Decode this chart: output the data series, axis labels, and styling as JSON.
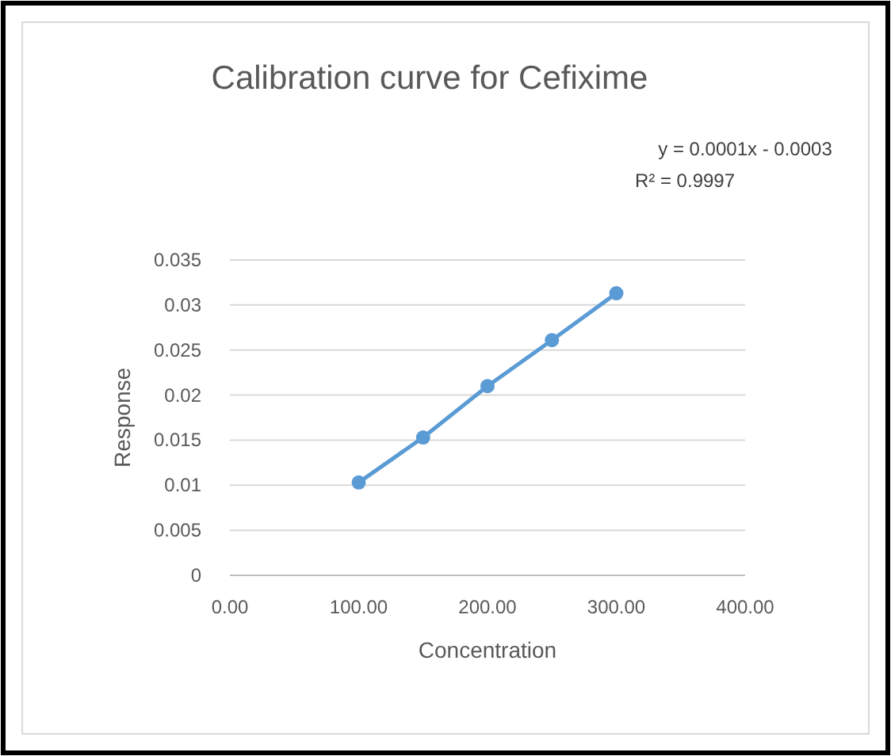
{
  "chart_data": {
    "type": "line",
    "title": "Calibration curve for Cefixime",
    "xlabel": "Concentration",
    "ylabel": "Response",
    "x": [
      100,
      150,
      200,
      250,
      300
    ],
    "series": [
      {
        "color": "#5b9bd5",
        "values": [
          0.0103,
          0.0153,
          0.021,
          0.0261,
          0.0313
        ]
      }
    ],
    "xlim": [
      0,
      400
    ],
    "xticks": [
      {
        "value": 0,
        "label": "0.00"
      },
      {
        "value": 100,
        "label": "100.00"
      },
      {
        "value": 200,
        "label": "200.00"
      },
      {
        "value": 300,
        "label": "300.00"
      },
      {
        "value": 400,
        "label": "400.00"
      }
    ],
    "ylim": [
      0,
      0.035
    ],
    "yticks": [
      {
        "value": 0,
        "label": "0"
      },
      0.005,
      0.01,
      0.015,
      0.02,
      0.025,
      0.03,
      0.035
    ],
    "grid": "y",
    "marker": "circle",
    "line_style": "solid",
    "annotations": [
      "y = 0.0001x - 0.0003",
      "R² = 0.9997"
    ]
  }
}
